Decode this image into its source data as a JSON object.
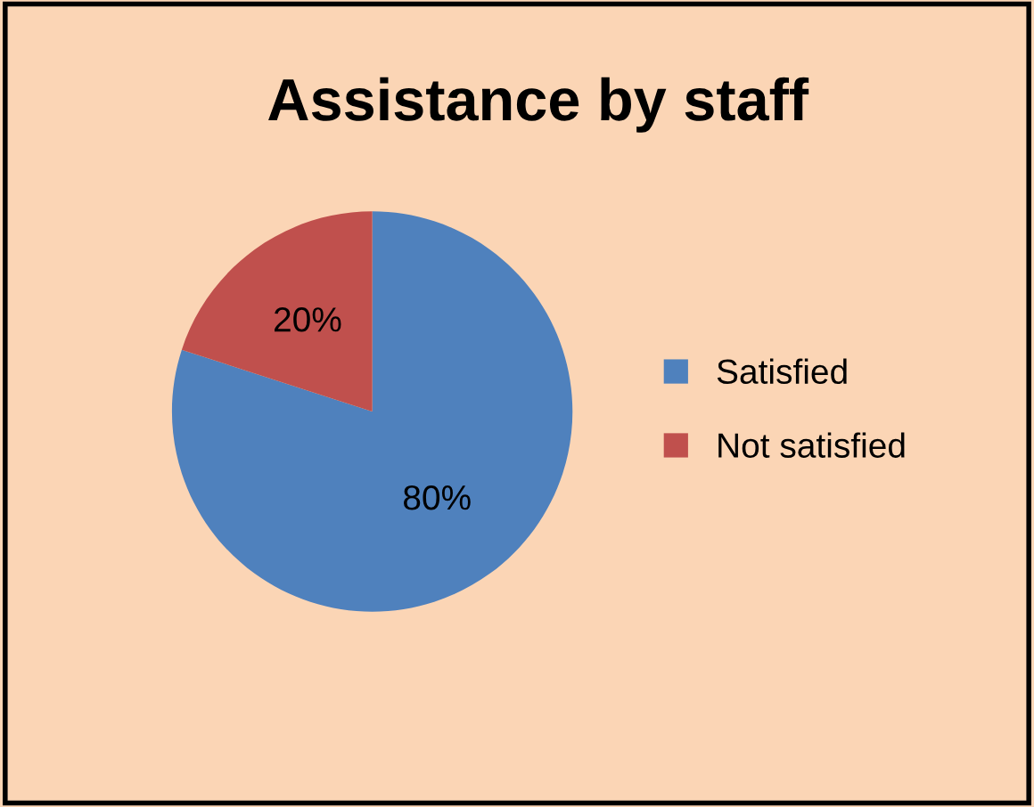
{
  "chart_data": {
    "type": "pie",
    "title": "Assistance by staff",
    "categories": [
      "Satisfied",
      "Not satisfied"
    ],
    "values": [
      80,
      20
    ],
    "colors": [
      "#4f81bd",
      "#c0504d"
    ],
    "value_labels": [
      "80%",
      "20%"
    ],
    "legend": "right"
  }
}
